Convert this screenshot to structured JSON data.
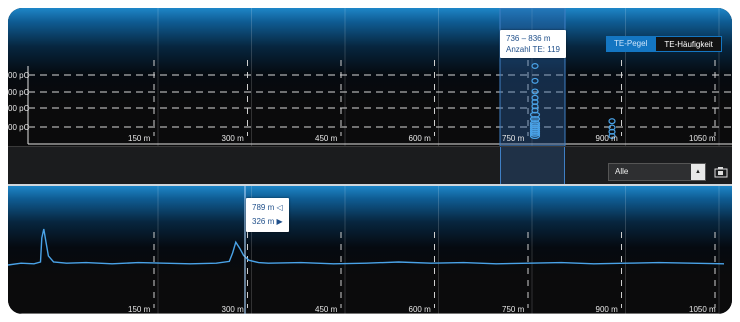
{
  "top_chart": {
    "y_tick_labels": [
      "00 pC",
      "00 pC",
      "00 pC",
      "00 pC"
    ],
    "x_tick_labels": [
      "150 m",
      "300 m",
      "450 m",
      "600 m",
      "750 m",
      "900 m",
      "1050 m"
    ],
    "x_tick_values": [
      150,
      300,
      450,
      600,
      750,
      900,
      1050
    ],
    "selection": {
      "range_label": "736 – 836 m",
      "count_label": "Anzahl TE: 119",
      "from": 736,
      "to": 836
    }
  },
  "toggles": {
    "level_label": "TE-Pegel",
    "frequency_label": "TE-Häufigkeit",
    "active": "TE-Pegel"
  },
  "filter": {
    "selected": "Alle"
  },
  "bottom_chart": {
    "x_tick_labels": [
      "150 m",
      "300 m",
      "450 m",
      "600 m",
      "750 m",
      "900 m",
      "1050 m"
    ],
    "cursor_tooltip": {
      "line1": "789 m ◁",
      "line2": "326 m ▶"
    },
    "cursor_value": 326
  },
  "chart_data": [
    {
      "type": "scatter",
      "x_range": [
        0,
        1100
      ],
      "series": [
        {
          "x": [
            775,
            775,
            775,
            775,
            775,
            775,
            775,
            775,
            775,
            775,
            775,
            775,
            775,
            775,
            775,
            775,
            925,
            925,
            925,
            925
          ],
          "y": [
            4.0,
            3.3,
            2.8,
            2.5,
            2.3,
            2.1,
            1.9,
            1.7,
            1.5,
            1.3,
            1.2,
            1.1,
            1.0,
            0.9,
            0.8,
            0.7,
            1.4,
            1.1,
            0.9,
            0.7
          ]
        }
      ],
      "grid": true,
      "accent": "#4aa3e8"
    },
    {
      "type": "line",
      "x_range": [
        0,
        1100
      ],
      "series": [
        {
          "x": [
            0,
            20,
            40,
            50,
            52,
            55,
            58,
            62,
            70,
            90,
            120,
            160,
            200,
            240,
            280,
            320,
            340,
            345,
            350,
            356,
            362,
            370,
            385,
            400,
            450,
            500,
            550,
            600,
            650,
            700,
            750,
            800,
            850,
            900,
            950,
            1000,
            1050,
            1100
          ],
          "y": [
            0,
            0.3,
            0.2,
            0.5,
            4.5,
            6.0,
            4.0,
            1.5,
            0.5,
            0.3,
            0.4,
            0.2,
            0.4,
            0.3,
            0.2,
            0.3,
            0.6,
            2.0,
            3.8,
            2.8,
            1.6,
            0.8,
            0.4,
            0.3,
            0.4,
            0.2,
            0.3,
            0.5,
            0.3,
            0.4,
            0.2,
            0.3,
            0.4,
            0.2,
            0.3,
            0.4,
            0.3,
            0.2
          ]
        }
      ],
      "accent": "#4aa3e8"
    }
  ]
}
